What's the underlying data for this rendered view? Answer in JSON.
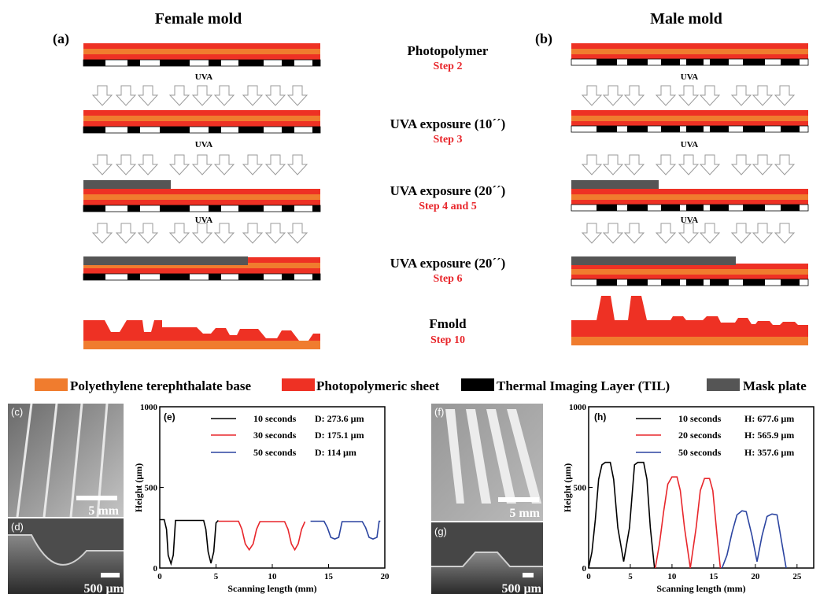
{
  "titles": {
    "female": "Female mold",
    "male": "Male mold"
  },
  "panel_labels": {
    "a": "(a)",
    "b": "(b)",
    "c": "(c)",
    "d": "(d)",
    "e": "(e)",
    "f": "(f)",
    "g": "(g)",
    "h": "(h)"
  },
  "steps": [
    {
      "title": "Photopolymer",
      "step": "Step 2"
    },
    {
      "title": "UVA exposure (10´´)",
      "step": "Step 3"
    },
    {
      "title": "UVA exposure (20´´)",
      "step": "Step 4 and 5"
    },
    {
      "title": "UVA exposure (20´´)",
      "step": "Step 6"
    },
    {
      "title": "Fmold",
      "step": "Step 10"
    }
  ],
  "uva_label": "UVA",
  "legend": [
    {
      "label": "Polyethylene terephthalate base",
      "color": "#f07c2e"
    },
    {
      "label": "Photopolymeric sheet",
      "color": "#ee3124"
    },
    {
      "label": "Thermal Imaging Layer (TIL)",
      "color": "#000000"
    },
    {
      "label": "Mask plate",
      "color": "#555555"
    }
  ],
  "micrographs": {
    "c_scale": "5 mm",
    "d_scale": "500 µm",
    "f_scale": "5 mm",
    "g_scale": "500 µm"
  },
  "chart_data": [
    {
      "panel": "(e)",
      "type": "line",
      "xlabel": "Scanning length (mm)",
      "ylabel": "Height (µm)",
      "xlim": [
        0,
        20
      ],
      "ylim": [
        0,
        1000
      ],
      "xticks": [
        "0",
        "5",
        "10",
        "15",
        "20"
      ],
      "yticks": [
        "0",
        "500",
        "1000"
      ],
      "series": [
        {
          "name": "10 seconds",
          "note": "D: 273.6 µm",
          "color": "#000000",
          "x": [
            0,
            0.4,
            0.6,
            0.75,
            1.0,
            1.2,
            1.4,
            3.9,
            4.1,
            4.3,
            4.55,
            4.8,
            5.0,
            5.2
          ],
          "y": [
            300,
            300,
            240,
            80,
            27,
            80,
            295,
            295,
            240,
            100,
            30,
            100,
            280,
            295
          ]
        },
        {
          "name": "30 seconds",
          "note": "D: 175.1 µm",
          "color": "#e8262b",
          "x": [
            5.2,
            7.0,
            7.3,
            7.6,
            7.95,
            8.3,
            8.6,
            8.9,
            11.1,
            11.4,
            11.7,
            12.0,
            12.3,
            12.6,
            12.9
          ],
          "y": [
            290,
            290,
            240,
            150,
            113,
            150,
            240,
            288,
            288,
            240,
            150,
            113,
            150,
            240,
            288
          ]
        },
        {
          "name": "50 seconds",
          "note": "D: 114 µm",
          "color": "#2b44a0",
          "x": [
            13.4,
            14.6,
            14.9,
            15.2,
            15.55,
            15.9,
            16.2,
            18.0,
            18.3,
            18.6,
            18.95,
            19.3,
            19.5,
            19.6
          ],
          "y": [
            290,
            290,
            250,
            190,
            180,
            190,
            288,
            288,
            250,
            190,
            180,
            190,
            290,
            290
          ]
        }
      ]
    },
    {
      "panel": "(h)",
      "type": "line",
      "xlabel": "Scanning length (mm)",
      "ylabel": "Height (µm)",
      "xlim": [
        0,
        27
      ],
      "ylim": [
        0,
        1000
      ],
      "xticks": [
        "0",
        "5",
        "10",
        "15",
        "20",
        "25"
      ],
      "yticks": [
        "0",
        "500",
        "1000"
      ],
      "series": [
        {
          "name": "10 seconds",
          "note": "H: 677.6 µm",
          "color": "#000000",
          "x": [
            0,
            0.4,
            0.8,
            1.2,
            1.6,
            2.0,
            2.6,
            3.0,
            3.5,
            4.2,
            4.9,
            5.5,
            5.9,
            6.6,
            7.0,
            7.4,
            7.9
          ],
          "y": [
            0,
            100,
            300,
            550,
            640,
            655,
            655,
            550,
            250,
            40,
            250,
            640,
            655,
            655,
            550,
            250,
            0
          ]
        },
        {
          "name": "20 seconds",
          "note": "H: 565.9 µm",
          "color": "#e8262b",
          "x": [
            8.0,
            8.5,
            9.0,
            9.5,
            10.0,
            10.6,
            11.0,
            11.5,
            12.2,
            12.9,
            13.4,
            13.9,
            14.5,
            14.9,
            15.5,
            15.8
          ],
          "y": [
            0,
            150,
            350,
            520,
            565,
            565,
            480,
            250,
            0,
            250,
            480,
            555,
            555,
            480,
            150,
            0
          ]
        },
        {
          "name": "50 seconds",
          "note": "H: 357.6 µm",
          "color": "#2b44a0",
          "x": [
            16.0,
            16.6,
            17.2,
            17.8,
            18.4,
            18.9,
            19.6,
            20.2,
            20.8,
            21.4,
            22.0,
            22.6,
            23.2,
            23.7
          ],
          "y": [
            0,
            80,
            220,
            330,
            355,
            350,
            200,
            40,
            200,
            320,
            335,
            330,
            150,
            0
          ]
        }
      ]
    }
  ]
}
